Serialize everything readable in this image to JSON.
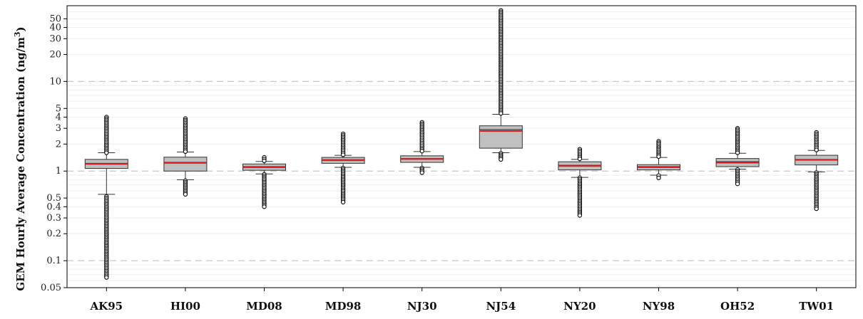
{
  "chart_data": {
    "type": "box",
    "ylabel_prefix": "GEM Hourly Average  Concentration (ng/m",
    "ylabel_sup": "3",
    "ylabel_suffix": ")",
    "y_scale": "log",
    "ylim": [
      0.05,
      70
    ],
    "y_ticks": [
      0.05,
      0.1,
      0.2,
      0.3,
      0.4,
      0.5,
      1,
      2,
      3,
      4,
      5,
      10,
      20,
      30,
      40,
      50
    ],
    "y_tick_labels": [
      "0.05",
      "0.1",
      "0.2",
      "0.3",
      "0.4",
      "0.5",
      "1",
      "2",
      "3",
      "4",
      "5",
      "10",
      "20",
      "30",
      "40",
      "50"
    ],
    "major_grid": [
      0.1,
      1,
      10
    ],
    "minor_grid": true,
    "box_color": "#c0c0c0",
    "median_color": "#e02020",
    "categories": [
      "AK95",
      "HI00",
      "MD08",
      "MD98",
      "NJ30",
      "NJ54",
      "NY20",
      "NY98",
      "OH52",
      "TW01"
    ],
    "boxes": [
      {
        "name": "AK95",
        "q1": 1.07,
        "median": 1.2,
        "mean": 1.22,
        "q3": 1.35,
        "whisker_low": 0.55,
        "whisker_high": 1.6,
        "outlier_low": [
          0.065,
          0.52
        ],
        "outlier_high": [
          1.6,
          4.0
        ]
      },
      {
        "name": "HI00",
        "q1": 1.0,
        "median": 1.23,
        "mean": 1.25,
        "q3": 1.43,
        "whisker_low": 0.8,
        "whisker_high": 1.63,
        "outlier_low": [
          0.55,
          0.78
        ],
        "outlier_high": [
          1.65,
          3.85
        ]
      },
      {
        "name": "MD08",
        "q1": 1.02,
        "median": 1.1,
        "mean": 1.12,
        "q3": 1.2,
        "whisker_low": 0.93,
        "whisker_high": 1.28,
        "outlier_low": [
          0.4,
          0.92
        ],
        "outlier_high": [
          1.3,
          1.42
        ]
      },
      {
        "name": "MD98",
        "q1": 1.22,
        "median": 1.32,
        "mean": 1.34,
        "q3": 1.42,
        "whisker_low": 1.1,
        "whisker_high": 1.5,
        "outlier_low": [
          0.45,
          1.08
        ],
        "outlier_high": [
          1.52,
          2.6
        ]
      },
      {
        "name": "NJ30",
        "q1": 1.25,
        "median": 1.36,
        "mean": 1.38,
        "q3": 1.48,
        "whisker_low": 1.1,
        "whisker_high": 1.65,
        "outlier_low": [
          0.96,
          1.08
        ],
        "outlier_high": [
          1.67,
          3.5
        ]
      },
      {
        "name": "NJ54",
        "q1": 1.8,
        "median": 2.8,
        "mean": 2.9,
        "q3": 3.2,
        "whisker_low": 1.6,
        "whisker_high": 4.3,
        "outlier_low": [
          1.35,
          1.58
        ],
        "outlier_high": [
          4.4,
          62
        ]
      },
      {
        "name": "NY20",
        "q1": 1.03,
        "median": 1.14,
        "mean": 1.16,
        "q3": 1.27,
        "whisker_low": 0.85,
        "whisker_high": 1.35,
        "outlier_low": [
          0.32,
          0.84
        ],
        "outlier_high": [
          1.37,
          1.75
        ]
      },
      {
        "name": "NY98",
        "q1": 1.03,
        "median": 1.1,
        "mean": 1.12,
        "q3": 1.18,
        "whisker_low": 0.9,
        "whisker_high": 1.42,
        "outlier_low": [
          0.84,
          0.89
        ],
        "outlier_high": [
          1.45,
          2.15
        ]
      },
      {
        "name": "OH52",
        "q1": 1.12,
        "median": 1.24,
        "mean": 1.27,
        "q3": 1.38,
        "whisker_low": 1.05,
        "whisker_high": 1.58,
        "outlier_low": [
          0.72,
          1.04
        ],
        "outlier_high": [
          1.6,
          3.0
        ]
      },
      {
        "name": "TW01",
        "q1": 1.17,
        "median": 1.33,
        "mean": 1.35,
        "q3": 1.5,
        "whisker_low": 0.98,
        "whisker_high": 1.7,
        "outlier_low": [
          0.38,
          0.96
        ],
        "outlier_high": [
          1.72,
          2.7
        ]
      }
    ]
  }
}
